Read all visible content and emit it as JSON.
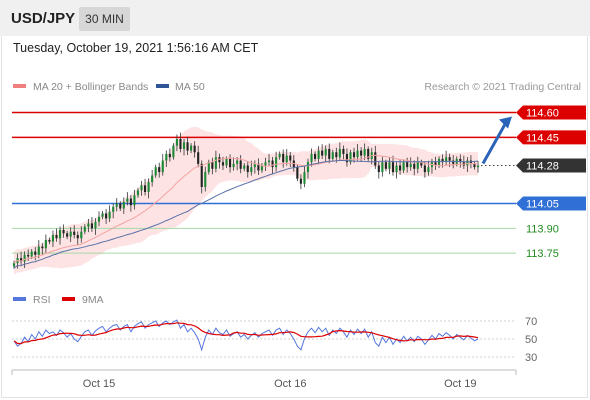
{
  "header": {
    "symbol": "USD/JPY",
    "timeframe": "30 MIN"
  },
  "timestamp": "Tuesday, October 19, 2021 1:56:16 AM CET",
  "credit": "Research © 2021 Trading Central",
  "legend": {
    "bollinger": {
      "label": "MA 20 + Bollinger Bands",
      "color": "#f08080"
    },
    "ma50": {
      "label": "MA 50",
      "color": "#2f5597"
    }
  },
  "osc_legend": {
    "rsi": {
      "label": "RSI",
      "color": "#5577dd"
    },
    "ma9": {
      "label": "9MA",
      "color": "#dd0000"
    }
  },
  "colors": {
    "resistance": "#dd0000",
    "support": "#2f6fd6",
    "target": "#228b22",
    "last": "#333333",
    "arrow": "#2a63b8"
  },
  "chart_data": [
    {
      "type": "candlestick",
      "ylim": [
        113.6,
        114.7
      ],
      "x_ticks": [
        "Oct 15",
        "Oct 16",
        "Oct 19"
      ],
      "last_price": 114.28,
      "levels": [
        {
          "value": 114.6,
          "label": "114.60",
          "kind": "resistance"
        },
        {
          "value": 114.45,
          "label": "114.45",
          "kind": "resistance"
        },
        {
          "value": 114.28,
          "label": "114.28",
          "kind": "last"
        },
        {
          "value": 114.05,
          "label": "114.05",
          "kind": "support"
        },
        {
          "value": 113.9,
          "label": "113.90",
          "kind": "target"
        },
        {
          "value": 113.75,
          "label": "113.75",
          "kind": "target"
        }
      ],
      "close": [
        113.69,
        113.72,
        113.7,
        113.74,
        113.73,
        113.76,
        113.74,
        113.79,
        113.78,
        113.83,
        113.82,
        113.86,
        113.84,
        113.89,
        113.87,
        113.85,
        113.88,
        113.86,
        113.84,
        113.88,
        113.91,
        113.93,
        113.9,
        113.94,
        113.97,
        113.99,
        113.96,
        114.0,
        114.03,
        114.05,
        114.02,
        114.06,
        114.08,
        114.04,
        114.1,
        114.13,
        114.16,
        114.12,
        114.18,
        114.22,
        114.27,
        114.24,
        114.31,
        114.35,
        114.33,
        114.4,
        114.44,
        114.38,
        114.42,
        114.37,
        114.4,
        114.36,
        114.29,
        114.15,
        114.24,
        114.3,
        114.26,
        114.33,
        114.3,
        114.28,
        114.32,
        114.27,
        114.29,
        114.31,
        114.26,
        114.28,
        114.24,
        114.27,
        114.29,
        114.25,
        114.28,
        114.3,
        114.31,
        114.27,
        114.33,
        114.35,
        114.3,
        114.34,
        114.31,
        114.27,
        114.2,
        114.17,
        114.24,
        114.3,
        114.35,
        114.32,
        114.37,
        114.34,
        114.38,
        114.32,
        114.36,
        114.33,
        114.38,
        114.35,
        114.3,
        114.36,
        114.33,
        114.37,
        114.34,
        114.38,
        114.32,
        114.36,
        114.28,
        114.24,
        114.3,
        114.26,
        114.3,
        114.24,
        114.28,
        114.25,
        114.3,
        114.27,
        114.29,
        114.26,
        114.3,
        114.28,
        114.24,
        114.27,
        114.3,
        114.28,
        114.32,
        114.3,
        114.33,
        114.31,
        114.29,
        114.32,
        114.3,
        114.28,
        114.31,
        114.29,
        114.27,
        114.28
      ],
      "rsi": {
        "ylim": [
          20,
          80
        ],
        "ticks": [
          70,
          50,
          30
        ],
        "values": [
          48,
          42,
          45,
          52,
          47,
          55,
          50,
          58,
          53,
          60,
          56,
          58,
          54,
          60,
          57,
          52,
          56,
          50,
          47,
          53,
          58,
          60,
          54,
          59,
          62,
          64,
          58,
          62,
          65,
          66,
          60,
          64,
          66,
          58,
          64,
          67,
          69,
          62,
          66,
          68,
          70,
          64,
          68,
          70,
          66,
          69,
          71,
          62,
          66,
          58,
          62,
          57,
          50,
          38,
          52,
          60,
          55,
          62,
          57,
          55,
          60,
          53,
          56,
          58,
          52,
          55,
          50,
          54,
          57,
          52,
          56,
          58,
          60,
          54,
          60,
          62,
          55,
          60,
          56,
          50,
          42,
          38,
          50,
          58,
          62,
          57,
          63,
          58,
          62,
          54,
          60,
          56,
          62,
          58,
          52,
          60,
          55,
          61,
          56,
          61,
          52,
          58,
          46,
          42,
          52,
          46,
          52,
          44,
          50,
          46,
          53,
          48,
          52,
          47,
          53,
          50,
          44,
          49,
          54,
          50,
          56,
          53,
          57,
          54,
          50,
          55,
          52,
          49,
          54,
          51,
          48,
          50
        ]
      }
    }
  ]
}
